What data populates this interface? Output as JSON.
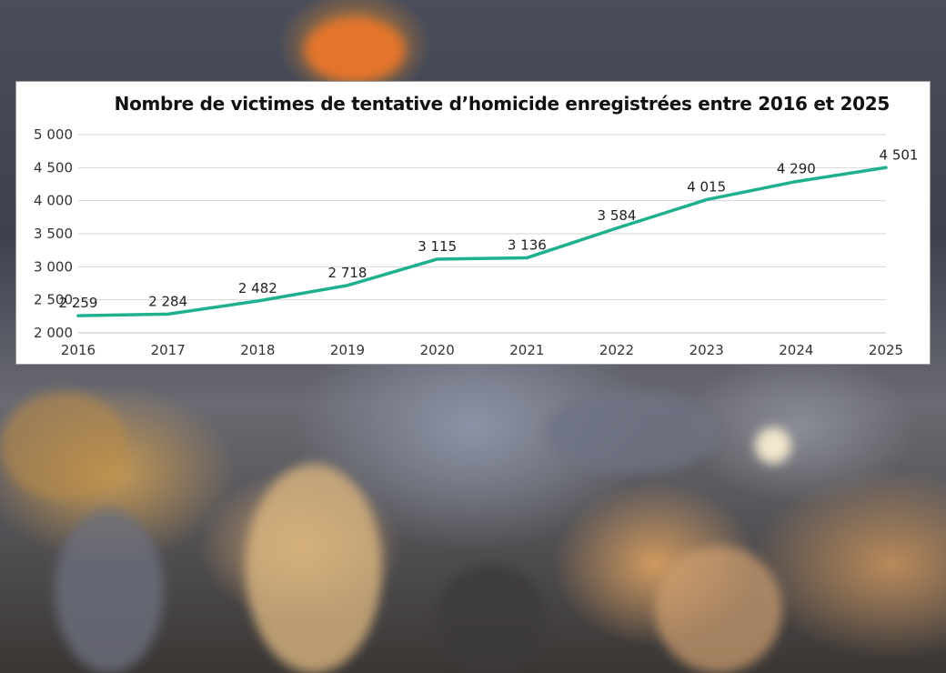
{
  "chart_data": {
    "type": "line",
    "title": "Nombre de victimes de tentative d’homicide enregistrées entre 2016 et 2025",
    "xlabel": "",
    "ylabel": "",
    "x": [
      "2016",
      "2017",
      "2018",
      "2019",
      "2020",
      "2021",
      "2022",
      "2023",
      "2024",
      "2025"
    ],
    "series": [
      {
        "values": [
          2259,
          2284,
          2482,
          2718,
          3115,
          3136,
          3584,
          4015,
          4290,
          4501
        ],
        "labels": [
          "2 259",
          "2 284",
          "2 482",
          "2 718",
          "3 115",
          "3 136",
          "3 584",
          "4 015",
          "4 290",
          "4 501"
        ],
        "color": "#1fb090"
      }
    ],
    "ylim": [
      2000,
      5000
    ],
    "yticks": [
      2000,
      2500,
      3000,
      3500,
      4000,
      4500,
      5000
    ],
    "ytick_labels": [
      "2 000",
      "2 500",
      "3 000",
      "3 500",
      "4 000",
      "4 500",
      "5 000"
    ],
    "grid": true,
    "legend": "none"
  }
}
